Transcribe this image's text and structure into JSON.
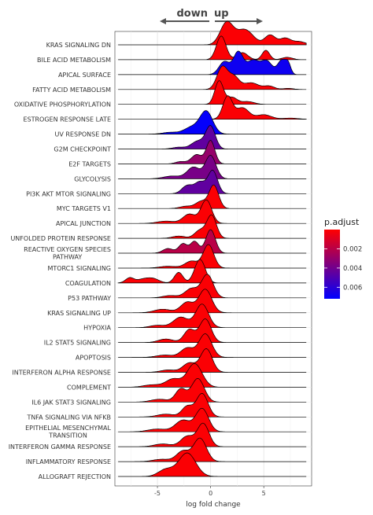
{
  "chart_data": {
    "type": "ridgeline",
    "direction_annotation": {
      "left": "down",
      "right": "up"
    },
    "xlabel": "log fold change",
    "x_ticks": [
      -5,
      0,
      5
    ],
    "xlim": [
      -9,
      9.5
    ],
    "grid": true,
    "legend": {
      "title": "p.adjust",
      "position": "right",
      "ticks": [
        0.002,
        0.004,
        0.006
      ],
      "range": [
        0.0,
        0.0072
      ],
      "colors": [
        "#ff0000",
        "#0000ff"
      ]
    },
    "series": [
      {
        "name": "KRAS SIGNALING DN",
        "p_adjust": 0.0001,
        "peaks": [
          [
            1.5,
            1.0,
            0.6
          ],
          [
            3.2,
            0.7,
            0.8
          ],
          [
            5.6,
            0.45,
            0.5
          ],
          [
            7.0,
            0.3,
            0.5
          ],
          [
            8.3,
            0.15,
            0.6
          ]
        ]
      },
      {
        "name": "BILE ACID METABOLISM",
        "p_adjust": 0.0001,
        "peaks": [
          [
            1.0,
            1.0,
            0.45
          ],
          [
            3.0,
            0.3,
            0.5
          ],
          [
            5.2,
            0.4,
            0.35
          ],
          [
            7.2,
            0.1,
            0.5
          ]
        ]
      },
      {
        "name": "APICAL SURFACE",
        "p_adjust": 0.0068,
        "peaks": [
          [
            1.3,
            0.5,
            0.5
          ],
          [
            2.6,
            0.85,
            0.45
          ],
          [
            4.0,
            0.55,
            0.6
          ],
          [
            5.3,
            0.5,
            0.5
          ],
          [
            6.7,
            0.55,
            0.4
          ],
          [
            7.3,
            0.35,
            0.25
          ]
        ]
      },
      {
        "name": "FATTY ACID METABOLISM",
        "p_adjust": 0.0001,
        "peaks": [
          [
            1.1,
            1.0,
            0.5
          ],
          [
            2.2,
            0.55,
            0.5
          ],
          [
            3.8,
            0.3,
            0.7
          ],
          [
            5.5,
            0.15,
            0.5
          ],
          [
            7.3,
            0.05,
            0.5
          ]
        ]
      },
      {
        "name": "OXIDATIVE PHOSPHORYLATION",
        "p_adjust": 0.0001,
        "peaks": [
          [
            0.8,
            1.0,
            0.4
          ],
          [
            2.0,
            0.3,
            0.5
          ],
          [
            3.5,
            0.12,
            0.6
          ]
        ]
      },
      {
        "name": "ESTROGEN RESPONSE LATE",
        "p_adjust": 0.0001,
        "peaks": [
          [
            1.6,
            1.0,
            0.45
          ],
          [
            3.0,
            0.5,
            0.6
          ],
          [
            5.0,
            0.2,
            0.7
          ],
          [
            7.5,
            0.05,
            0.7
          ]
        ]
      },
      {
        "name": "UV RESPONSE DN",
        "p_adjust": 0.0071,
        "peaks": [
          [
            -0.4,
            1.0,
            0.6
          ],
          [
            -1.8,
            0.3,
            0.7
          ],
          [
            -3.8,
            0.08,
            0.7
          ]
        ]
      },
      {
        "name": "G2M CHECKPOINT",
        "p_adjust": 0.0045,
        "peaks": [
          [
            0.0,
            1.0,
            0.45
          ],
          [
            -1.2,
            0.35,
            0.6
          ],
          [
            -3.0,
            0.08,
            0.6
          ]
        ]
      },
      {
        "name": "E2F TARGETS",
        "p_adjust": 0.003,
        "peaks": [
          [
            0.0,
            1.0,
            0.4
          ],
          [
            -1.3,
            0.4,
            0.5
          ],
          [
            -2.8,
            0.1,
            0.5
          ]
        ]
      },
      {
        "name": "GLYCOLYSIS",
        "p_adjust": 0.0038,
        "peaks": [
          [
            0.0,
            1.0,
            0.5
          ],
          [
            -1.6,
            0.5,
            0.6
          ],
          [
            -3.6,
            0.12,
            0.8
          ]
        ]
      },
      {
        "name": "PI3K AKT MTOR SIGNALING",
        "p_adjust": 0.0045,
        "peaks": [
          [
            0.2,
            1.0,
            0.45
          ],
          [
            -1.0,
            0.5,
            0.5
          ],
          [
            -2.2,
            0.35,
            0.5
          ]
        ]
      },
      {
        "name": "MYC TARGETS V1",
        "p_adjust": 0.0001,
        "peaks": [
          [
            0.3,
            1.0,
            0.45
          ],
          [
            -0.9,
            0.3,
            0.5
          ],
          [
            -2.3,
            0.1,
            0.6
          ]
        ]
      },
      {
        "name": "APICAL JUNCTION",
        "p_adjust": 0.0001,
        "peaks": [
          [
            -0.4,
            1.0,
            0.5
          ],
          [
            -2.0,
            0.4,
            0.6
          ],
          [
            -4.2,
            0.1,
            0.8
          ]
        ]
      },
      {
        "name": "UNFOLDED PROTEIN RESPONSE",
        "p_adjust": 0.0001,
        "peaks": [
          [
            0.1,
            1.0,
            0.45
          ],
          [
            -1.0,
            0.35,
            0.5
          ],
          [
            -3.0,
            0.1,
            0.6
          ]
        ]
      },
      {
        "name": "REACTIVE OXYGEN SPECIES PATHWAY",
        "p_adjust": 0.002,
        "peaks": [
          [
            0.0,
            1.0,
            0.45
          ],
          [
            -1.5,
            0.5,
            0.4
          ],
          [
            -2.6,
            0.4,
            0.4
          ],
          [
            -4.0,
            0.2,
            0.5
          ]
        ]
      },
      {
        "name": "MTORC1 SIGNALING",
        "p_adjust": 0.0001,
        "peaks": [
          [
            -0.2,
            1.0,
            0.5
          ],
          [
            -1.8,
            0.3,
            0.6
          ],
          [
            -4.0,
            0.08,
            0.8
          ]
        ]
      },
      {
        "name": "COAGULATION",
        "p_adjust": 0.0001,
        "peaks": [
          [
            -1.0,
            1.0,
            0.5
          ],
          [
            -3.0,
            0.45,
            0.4
          ],
          [
            -5.5,
            0.2,
            0.6
          ],
          [
            -7.6,
            0.22,
            0.4
          ],
          [
            -6.5,
            0.12,
            0.5
          ]
        ]
      },
      {
        "name": "P53 PATHWAY",
        "p_adjust": 0.0001,
        "peaks": [
          [
            -0.3,
            1.0,
            0.55
          ],
          [
            -1.8,
            0.4,
            0.6
          ],
          [
            -3.8,
            0.1,
            0.7
          ]
        ]
      },
      {
        "name": "KRAS SIGNALING UP",
        "p_adjust": 0.0001,
        "peaks": [
          [
            -0.5,
            1.0,
            0.6
          ],
          [
            -2.2,
            0.45,
            0.6
          ],
          [
            -4.5,
            0.15,
            0.8
          ]
        ]
      },
      {
        "name": "HYPOXIA",
        "p_adjust": 0.0001,
        "peaks": [
          [
            -0.8,
            1.0,
            0.6
          ],
          [
            -2.8,
            0.45,
            0.7
          ],
          [
            -5.0,
            0.1,
            0.7
          ]
        ]
      },
      {
        "name": "IL2 STAT5 SIGNALING",
        "p_adjust": 0.0001,
        "peaks": [
          [
            -0.5,
            1.0,
            0.55
          ],
          [
            -2.0,
            0.55,
            0.5
          ],
          [
            -4.2,
            0.15,
            0.7
          ]
        ]
      },
      {
        "name": "APOPTOSIS",
        "p_adjust": 0.0001,
        "peaks": [
          [
            -0.5,
            1.0,
            0.6
          ],
          [
            -2.2,
            0.4,
            0.6
          ],
          [
            -4.3,
            0.1,
            0.8
          ]
        ]
      },
      {
        "name": "INTERFERON ALPHA RESPONSE",
        "p_adjust": 0.0001,
        "peaks": [
          [
            -0.4,
            1.0,
            0.55
          ],
          [
            -2.0,
            0.4,
            0.6
          ],
          [
            -4.0,
            0.1,
            0.7
          ]
        ]
      },
      {
        "name": "COMPLEMENT",
        "p_adjust": 0.0001,
        "peaks": [
          [
            -1.5,
            1.0,
            0.7
          ],
          [
            -3.5,
            0.35,
            0.7
          ],
          [
            -5.5,
            0.1,
            0.8
          ]
        ]
      },
      {
        "name": "IL6 JAK STAT3 SIGNALING",
        "p_adjust": 0.0001,
        "peaks": [
          [
            -1.2,
            1.0,
            0.6
          ],
          [
            -2.8,
            0.55,
            0.5
          ],
          [
            -4.8,
            0.12,
            0.8
          ]
        ]
      },
      {
        "name": "TNFA SIGNALING VIA NFKB",
        "p_adjust": 0.0001,
        "peaks": [
          [
            -0.8,
            1.0,
            0.55
          ],
          [
            -2.2,
            0.45,
            0.5
          ],
          [
            -4.2,
            0.12,
            0.8
          ]
        ]
      },
      {
        "name": "EPITHELIAL MESENCHYMAL TRANSITION",
        "p_adjust": 0.0001,
        "peaks": [
          [
            -0.8,
            1.0,
            0.6
          ],
          [
            -2.6,
            0.5,
            0.7
          ],
          [
            -5.0,
            0.12,
            0.9
          ]
        ]
      },
      {
        "name": "INTERFERON GAMMA RESPONSE",
        "p_adjust": 0.0001,
        "peaks": [
          [
            -0.7,
            1.0,
            0.55
          ],
          [
            -2.2,
            0.45,
            0.6
          ],
          [
            -4.5,
            0.12,
            0.8
          ]
        ]
      },
      {
        "name": "INFLAMMATORY RESPONSE",
        "p_adjust": 0.0001,
        "peaks": [
          [
            -1.0,
            1.0,
            0.6
          ],
          [
            -2.6,
            0.45,
            0.6
          ],
          [
            -4.6,
            0.1,
            0.8
          ]
        ]
      },
      {
        "name": "ALLOGRAFT REJECTION",
        "p_adjust": 0.0001,
        "peaks": [
          [
            -2.2,
            1.0,
            0.8
          ],
          [
            -4.2,
            0.3,
            0.7
          ]
        ]
      }
    ]
  }
}
